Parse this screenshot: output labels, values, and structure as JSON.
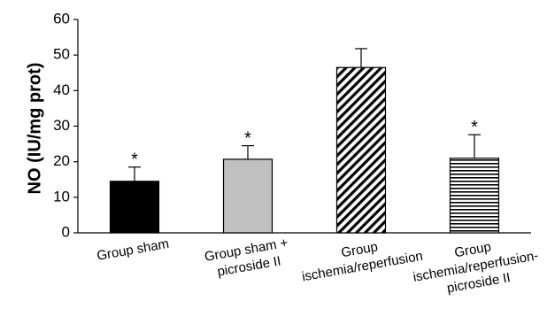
{
  "chart_data": {
    "type": "bar",
    "ylabel": "NO (IU/mg prot)",
    "ylim": [
      0,
      60
    ],
    "yticks": [
      0,
      10,
      20,
      30,
      40,
      50,
      60
    ],
    "categories": [
      {
        "lines": [
          "Group sham"
        ]
      },
      {
        "lines": [
          "Group sham +",
          "picroside II"
        ]
      },
      {
        "lines": [
          "Group",
          "ischemia/reperfusion"
        ]
      },
      {
        "lines": [
          "Group",
          "ischemia/reperfusion-",
          "picroside II"
        ]
      }
    ],
    "values": [
      14.5,
      20.7,
      46.5,
      21.0
    ],
    "error_upper": [
      4.0,
      3.8,
      5.3,
      6.6
    ],
    "significance": [
      "*",
      "*",
      "",
      "*"
    ],
    "fills": [
      "solid-black",
      "solid-gray",
      "diagonal-hatch",
      "horizontal-lines"
    ],
    "colors": {
      "black": "#000000",
      "gray": "#c0c0c0",
      "white": "#ffffff"
    },
    "grid": false,
    "legend": false
  }
}
